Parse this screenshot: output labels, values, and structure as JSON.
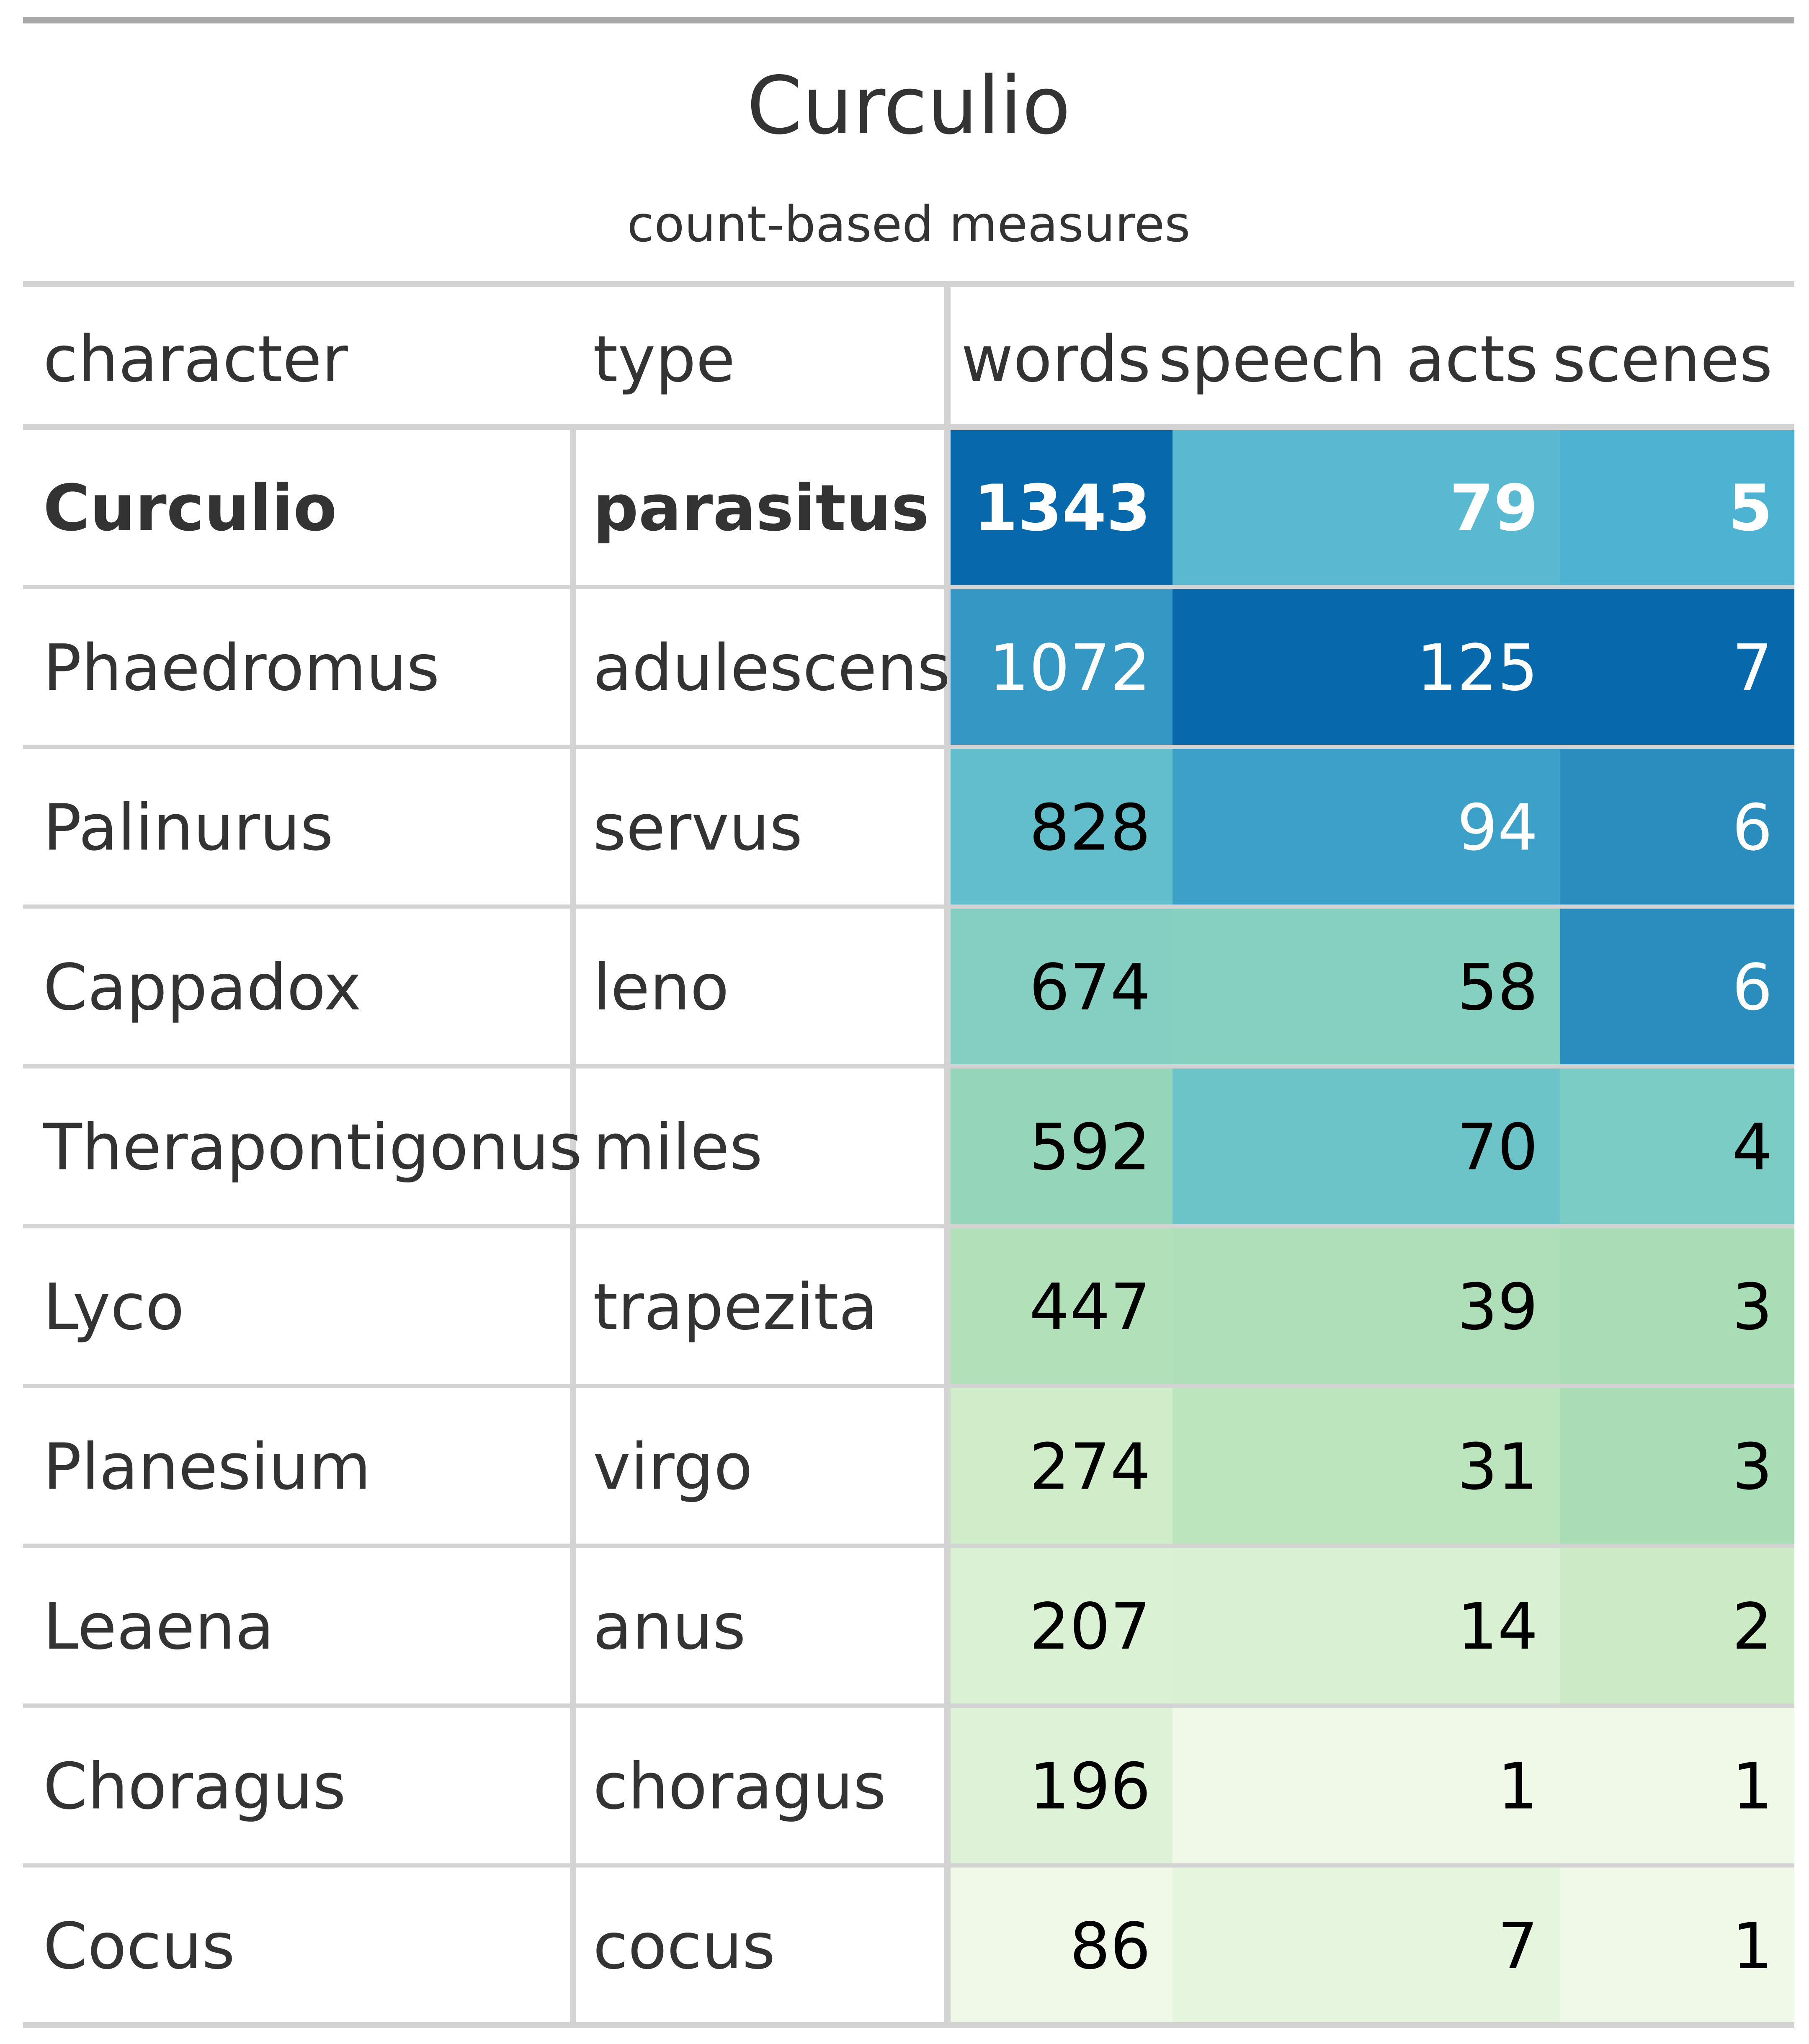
{
  "chart_data": {
    "type": "table",
    "title": "Curculio",
    "subtitle": "count-based measures",
    "columns": [
      {
        "key": "character",
        "label": "character",
        "kind": "text"
      },
      {
        "key": "type",
        "label": "type",
        "kind": "text"
      },
      {
        "key": "words",
        "label": "words",
        "kind": "number"
      },
      {
        "key": "speech_acts",
        "label": "speech acts",
        "kind": "number"
      },
      {
        "key": "scenes",
        "label": "scenes",
        "kind": "number"
      }
    ],
    "rows": [
      {
        "character": "Curculio",
        "type": "parasitus",
        "words": 1343,
        "speech_acts": 79,
        "scenes": 5,
        "highlight": true
      },
      {
        "character": "Phaedromus",
        "type": "adulescens",
        "words": 1072,
        "speech_acts": 125,
        "scenes": 7,
        "highlight": false
      },
      {
        "character": "Palinurus",
        "type": "servus",
        "words": 828,
        "speech_acts": 94,
        "scenes": 6,
        "highlight": false
      },
      {
        "character": "Cappadox",
        "type": "leno",
        "words": 674,
        "speech_acts": 58,
        "scenes": 6,
        "highlight": false
      },
      {
        "character": "Therapontigonus",
        "type": "miles",
        "words": 592,
        "speech_acts": 70,
        "scenes": 4,
        "highlight": false
      },
      {
        "character": "Lyco",
        "type": "trapezita",
        "words": 447,
        "speech_acts": 39,
        "scenes": 3,
        "highlight": false
      },
      {
        "character": "Planesium",
        "type": "virgo",
        "words": 274,
        "speech_acts": 31,
        "scenes": 3,
        "highlight": false
      },
      {
        "character": "Leaena",
        "type": "anus",
        "words": 207,
        "speech_acts": 14,
        "scenes": 2,
        "highlight": false
      },
      {
        "character": "Choragus",
        "type": "choragus",
        "words": 196,
        "speech_acts": 1,
        "scenes": 1,
        "highlight": false
      },
      {
        "character": "Cocus",
        "type": "cocus",
        "words": 86,
        "speech_acts": 7,
        "scenes": 1,
        "highlight": false
      }
    ],
    "color_scale": {
      "palette": [
        "#f0f9e8",
        "#ccebc5",
        "#a8ddb5",
        "#7bccc4",
        "#4eb3d3",
        "#2b8cbe",
        "#0868ac"
      ],
      "dark_text_color": "#000000",
      "light_text_color": "#ffffff"
    }
  }
}
